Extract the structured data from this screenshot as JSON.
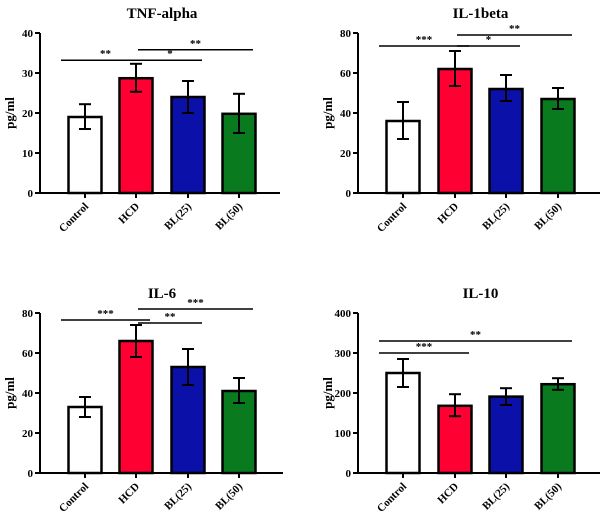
{
  "chart_data": [
    {
      "type": "bar",
      "title": "TNF-alpha",
      "xlabel": "",
      "ylabel": "pg/ml",
      "ylim": [
        0,
        40
      ],
      "yticks": [
        "0",
        "10",
        "20",
        "30",
        "40"
      ],
      "categories": [
        "Control",
        "HCD",
        "BL(25)",
        "BL(50)"
      ],
      "colors": [
        "#ffffff",
        "#ff0033",
        "#0a10a8",
        "#0a7a1e"
      ],
      "values": [
        19,
        28.7,
        24,
        19.8
      ],
      "error_low": [
        16,
        25.3,
        20,
        15
      ],
      "error_high": [
        22.2,
        32.3,
        28,
        24.8
      ],
      "significance": [
        {
          "from": 0,
          "to": 1,
          "label": "**",
          "level": 33.2
        },
        {
          "from": 1,
          "to": 2,
          "label": "*",
          "level": 33.2
        },
        {
          "from": 1,
          "to": 3,
          "label": "**",
          "level": 35.8
        }
      ]
    },
    {
      "type": "bar",
      "title": "IL-1beta",
      "xlabel": "",
      "ylabel": "pg/ml",
      "ylim": [
        0,
        80
      ],
      "yticks": [
        "0",
        "20",
        "40",
        "60",
        "80"
      ],
      "categories": [
        "Control",
        "HCD",
        "BL(25)",
        "BL(50)"
      ],
      "colors": [
        "#ffffff",
        "#ff0033",
        "#0a10a8",
        "#0a7a1e"
      ],
      "values": [
        36,
        62,
        52,
        47
      ],
      "error_low": [
        27,
        53.5,
        46,
        42
      ],
      "error_high": [
        45.5,
        71,
        59,
        52.5
      ],
      "significance": [
        {
          "from": 0,
          "to": 1,
          "label": "***",
          "level": 73.5
        },
        {
          "from": 1,
          "to": 2,
          "label": "*",
          "level": 73.5
        },
        {
          "from": 1,
          "to": 3,
          "label": "**",
          "level": 79
        }
      ]
    },
    {
      "type": "bar",
      "title": "IL-6",
      "xlabel": "",
      "ylabel": "pg/ml",
      "ylim": [
        0,
        80
      ],
      "yticks": [
        "0",
        "20",
        "40",
        "60",
        "80"
      ],
      "categories": [
        "Control",
        "HCD",
        "BL(25)",
        "BL(50)"
      ],
      "colors": [
        "#ffffff",
        "#ff0033",
        "#0a10a8",
        "#0a7a1e"
      ],
      "values": [
        33,
        66,
        53,
        41
      ],
      "error_low": [
        28,
        58,
        44,
        35
      ],
      "error_high": [
        38,
        74,
        62,
        47.5
      ],
      "significance": [
        {
          "from": 0,
          "to": 1,
          "label": "***",
          "level": 76.5
        },
        {
          "from": 1,
          "to": 2,
          "label": "**",
          "level": 75
        },
        {
          "from": 1,
          "to": 3,
          "label": "***",
          "level": 82
        }
      ]
    },
    {
      "type": "bar",
      "title": "IL-10",
      "xlabel": "",
      "ylabel": "pg/ml",
      "ylim": [
        0,
        400
      ],
      "yticks": [
        "0",
        "100",
        "200",
        "300",
        "400"
      ],
      "categories": [
        "Control",
        "HCD",
        "BL(25)",
        "BL(50)"
      ],
      "colors": [
        "#ffffff",
        "#ff0033",
        "#0a10a8",
        "#0a7a1e"
      ],
      "values": [
        250,
        168,
        191,
        222
      ],
      "error_low": [
        215,
        142,
        170,
        208
      ],
      "error_high": [
        285,
        197,
        212,
        237
      ],
      "significance": [
        {
          "from": 0,
          "to": 1,
          "label": "***",
          "level": 300
        },
        {
          "from": 0,
          "to": 3,
          "label": "**",
          "level": 330
        }
      ]
    }
  ]
}
